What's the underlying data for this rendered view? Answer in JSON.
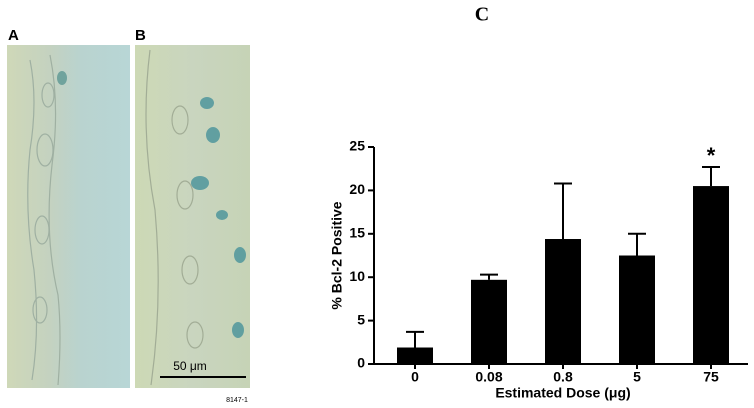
{
  "panel_labels": [
    "A",
    "B",
    "C"
  ],
  "scale_bar": "50 μm",
  "figure_id": "8147-1",
  "chart_data": {
    "type": "bar",
    "categories": [
      "0",
      "0.08",
      "0.8",
      "5",
      "75"
    ],
    "values": [
      1.9,
      9.7,
      14.4,
      12.5,
      20.5
    ],
    "errors": [
      1.8,
      0.6,
      6.4,
      2.5,
      2.2
    ],
    "significance_labels": [
      null,
      null,
      null,
      null,
      "*"
    ],
    "color": "#000000",
    "ylim": [
      0,
      25
    ],
    "yticks": [
      0,
      5,
      10,
      15,
      20,
      25
    ],
    "ylabel": "% Bcl-2 Positive",
    "xlabel": "Estimated Dose (μg)",
    "grid": false
  }
}
